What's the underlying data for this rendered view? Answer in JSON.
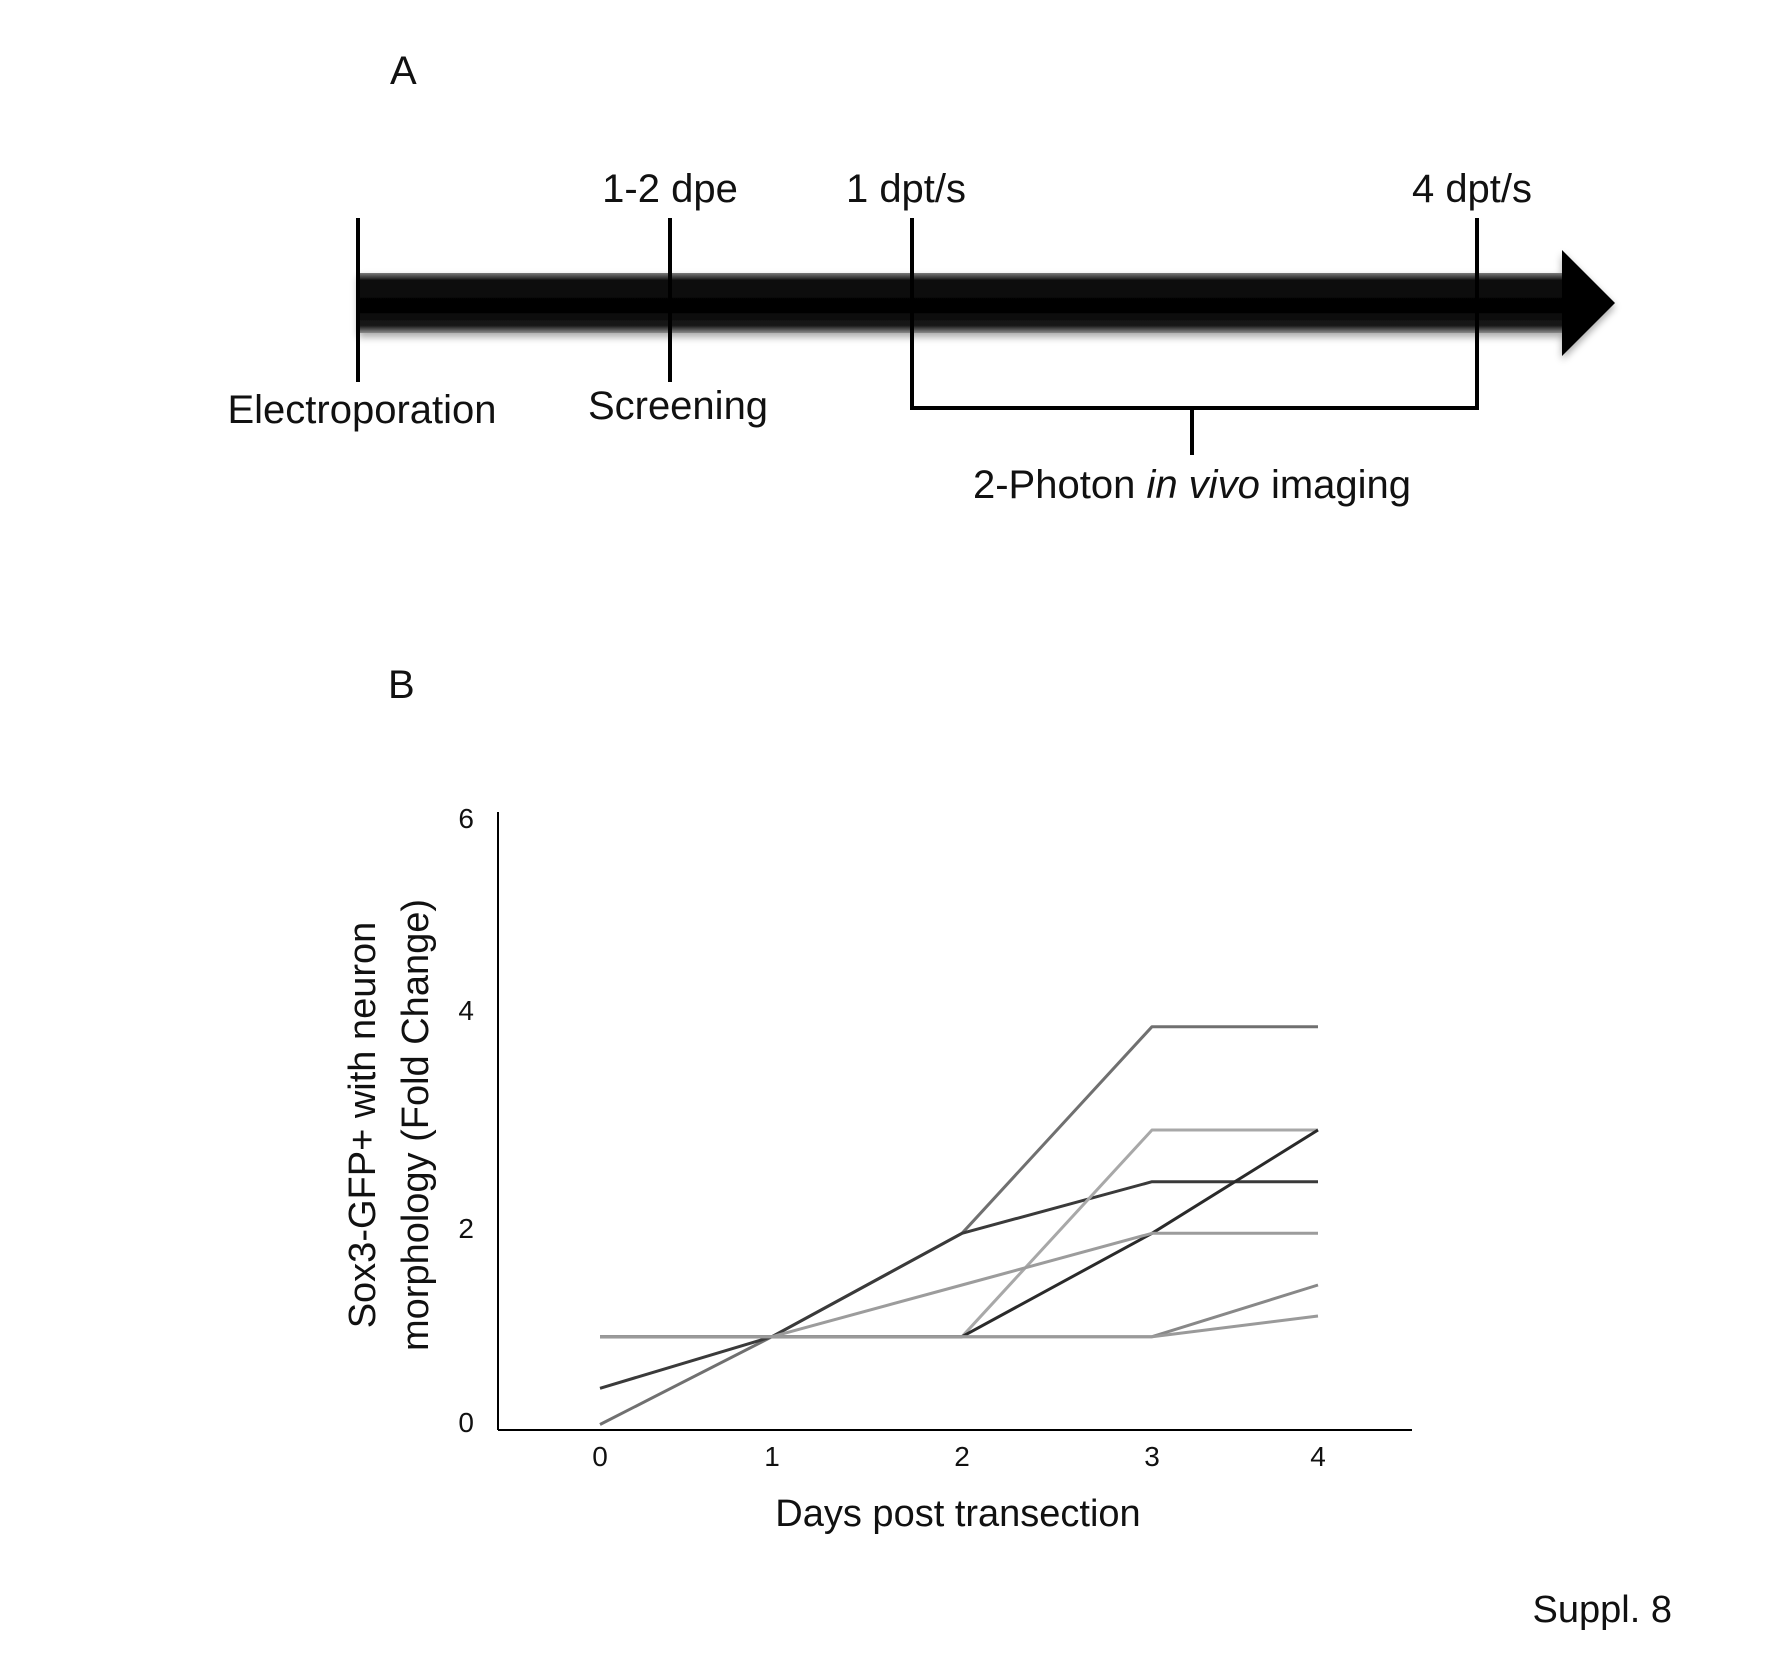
{
  "panels": {
    "a": {
      "label": "A"
    },
    "b": {
      "label": "B"
    }
  },
  "timeline": {
    "markers": [
      {
        "top": "",
        "bottom": "Electroporation"
      },
      {
        "top": "1-2 dpe",
        "bottom": "Screening"
      },
      {
        "top": "1 dpt/s",
        "bottom": ""
      },
      {
        "top": "4 dpt/s",
        "bottom": ""
      }
    ],
    "brace_label": {
      "prefix": "2-Photon ",
      "italic": "in vivo",
      "suffix": " imaging"
    }
  },
  "chart_data": {
    "type": "line",
    "title": "",
    "xlabel": "Days post transection",
    "ylabel_lines": [
      "Sox3-GFP+ with neuron",
      "morphology (Fold Change)"
    ],
    "x": [
      0,
      1,
      2,
      3,
      4
    ],
    "xticks": [
      "0",
      "1",
      "2",
      "3",
      "4"
    ],
    "ylim": [
      0,
      6
    ],
    "yticks": [
      "0",
      "2",
      "4",
      "6"
    ],
    "grid": false,
    "legend": "none",
    "series": [
      {
        "color": "#707070",
        "values": [
          0.15,
          1,
          2,
          4,
          4
        ]
      },
      {
        "color": "#3a3a3a",
        "values": [
          0.5,
          1,
          2,
          2.5,
          2.5
        ]
      },
      {
        "color": "#a8a8a8",
        "values": [
          1,
          1,
          1,
          3,
          3
        ]
      },
      {
        "color": "#2a2a2a",
        "values": [
          1,
          1,
          1,
          2,
          3
        ]
      },
      {
        "color": "#9c9c9c",
        "values": [
          1,
          1,
          1.5,
          2,
          2
        ]
      },
      {
        "color": "#888888",
        "values": [
          1,
          1,
          1,
          1,
          1.5
        ]
      },
      {
        "color": "#9a9a9a",
        "values": [
          1,
          1,
          1,
          1,
          1.2
        ]
      }
    ]
  },
  "footer": {
    "text": "Suppl. 8"
  }
}
